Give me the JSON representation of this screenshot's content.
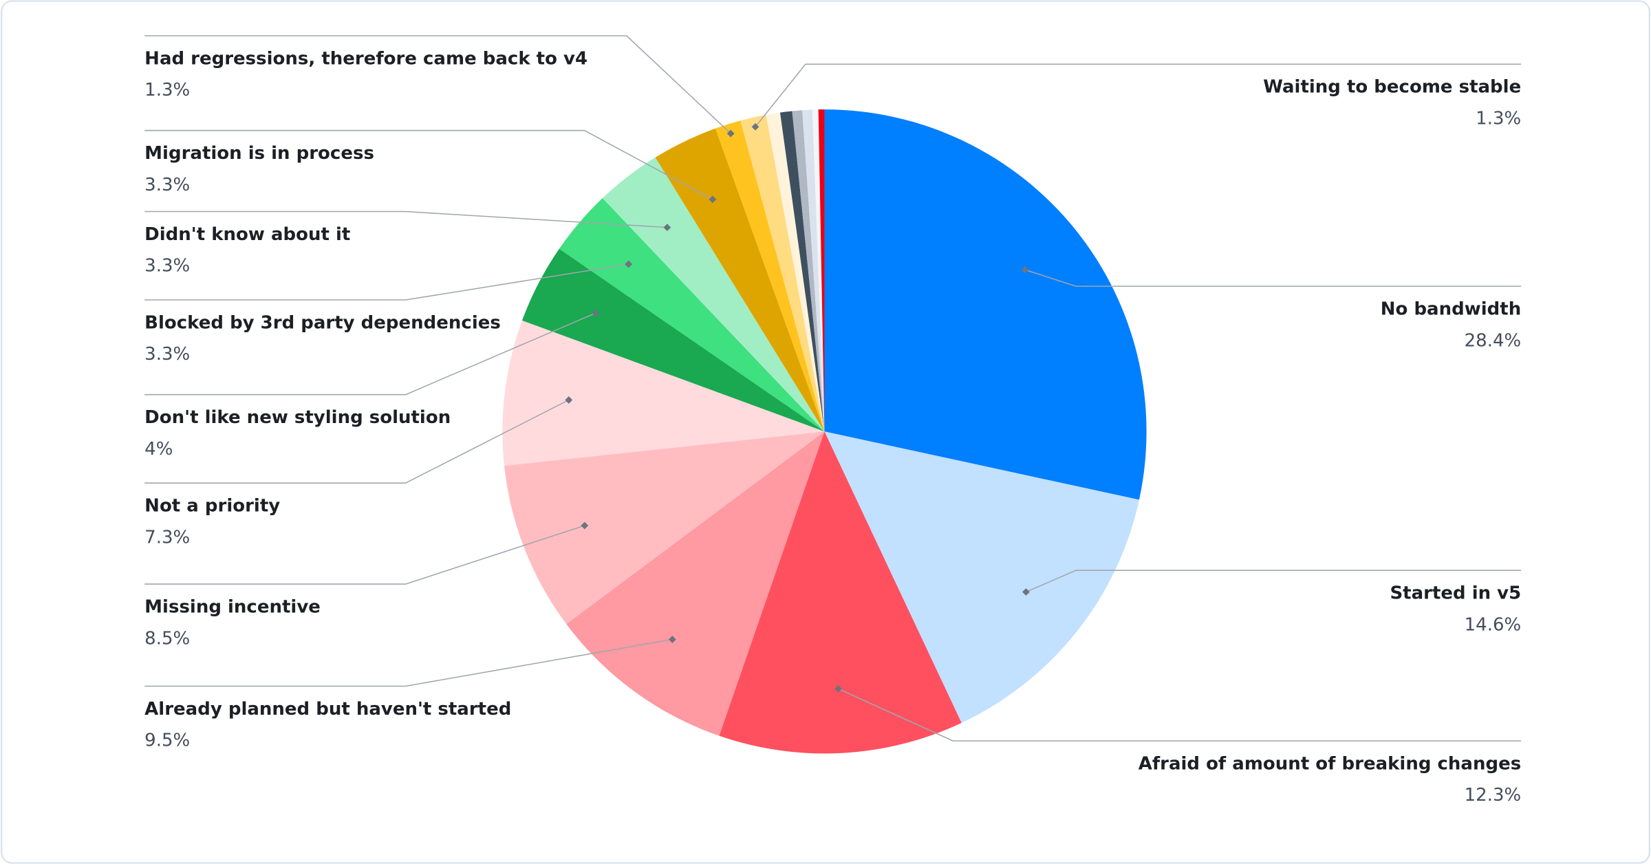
{
  "chart_data": {
    "type": "pie",
    "categories": [
      "No bandwidth",
      "Started in v5",
      "Afraid of amount of breaking changes",
      "Already planned but haven't started",
      "Missing incentive",
      "Not a priority",
      "Don't like new styling solution",
      "Blocked by 3rd party dependencies",
      "Didn't know about it",
      "Migration is in process",
      "Had regressions, therefore came back to v4",
      "Waiting to become stable",
      null,
      null,
      null,
      null,
      null,
      null
    ],
    "values": [
      28.4,
      14.6,
      12.3,
      9.5,
      8.5,
      7.3,
      4,
      3.3,
      3.3,
      3.3,
      1.3,
      1.3,
      0.7,
      0.6,
      0.5,
      0.5,
      0.3,
      0.3
    ],
    "value_labels": [
      "28.4%",
      "14.6%",
      "12.3%",
      "9.5%",
      "8.5%",
      "7.3%",
      "4%",
      "3.3%",
      "3.3%",
      "3.3%",
      "1.3%",
      "1.3%",
      null,
      null,
      null,
      null,
      null,
      null
    ],
    "colors": [
      "#007fff",
      "#c2e0ff",
      "#ff505f",
      "#ff99a2",
      "#ffbdc2",
      "#ffdbde",
      "#1aa851",
      "#3ee07f",
      "#a1eec4",
      "#dea500",
      "#ffc31f",
      "#ffdc82",
      "#fff3dc",
      "#3e5060",
      "#b0b8c4",
      "#dae2ed",
      "#f3f6f9",
      "#eb0014"
    ]
  }
}
